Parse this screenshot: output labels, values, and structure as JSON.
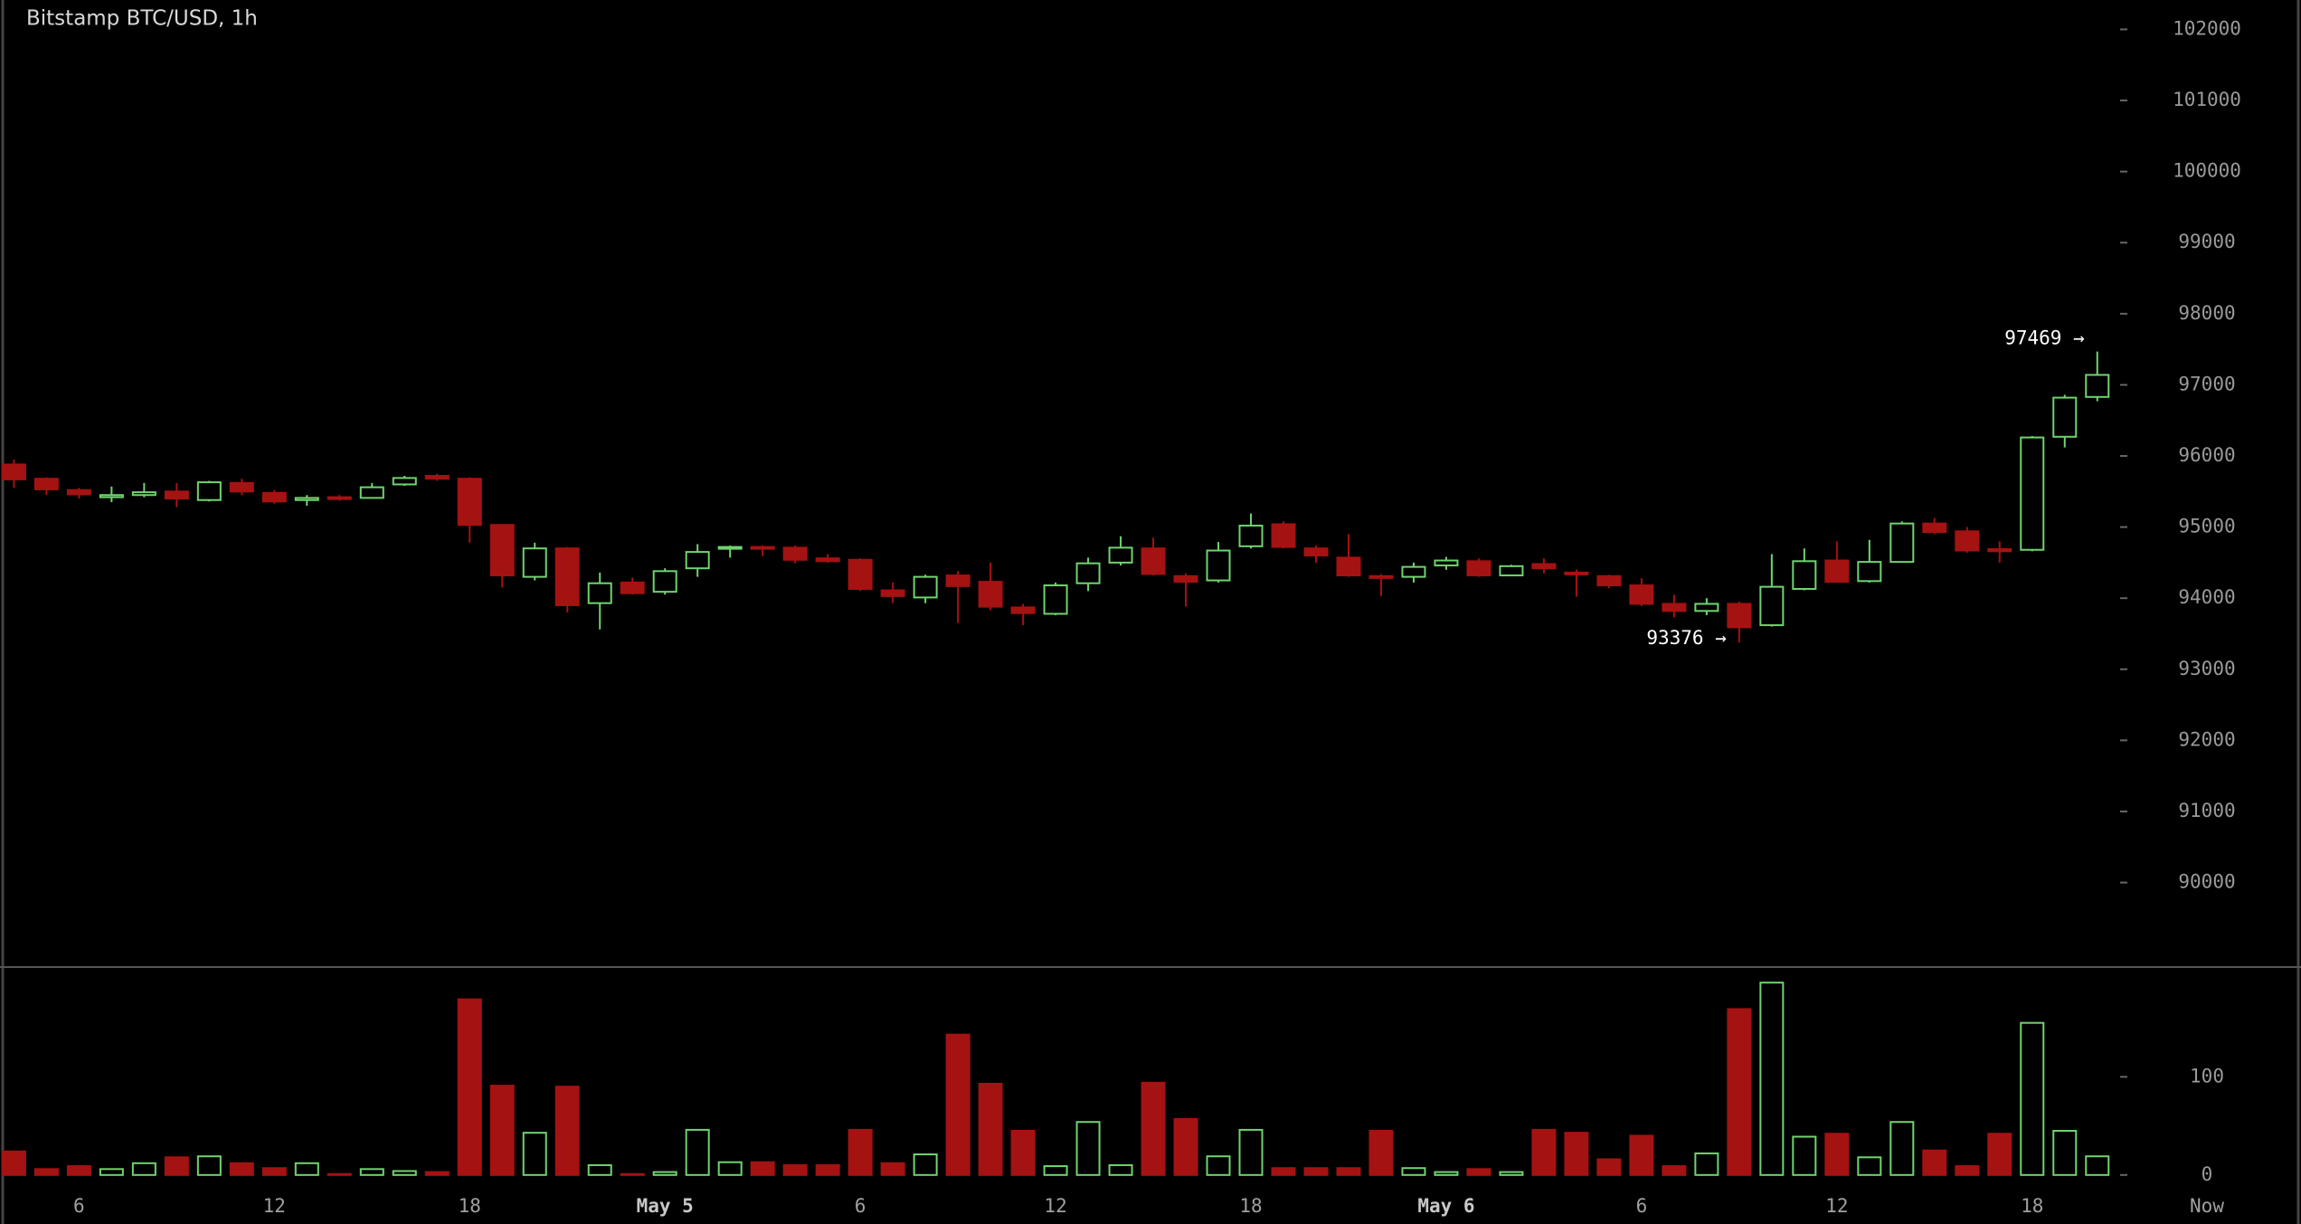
{
  "chart_data": {
    "type": "candlestick",
    "title": "Bitstamp BTC/USD, 1h",
    "categories": [
      null,
      null,
      "6",
      null,
      null,
      null,
      null,
      null,
      "12",
      null,
      null,
      null,
      null,
      null,
      "18",
      null,
      null,
      null,
      null,
      null,
      "May 5",
      null,
      null,
      null,
      null,
      null,
      "6",
      null,
      null,
      null,
      null,
      null,
      "12",
      null,
      null,
      null,
      null,
      null,
      "18",
      null,
      null,
      null,
      null,
      null,
      "May 6",
      null,
      null,
      null,
      null,
      null,
      "6",
      null,
      null,
      null,
      null,
      null,
      "12",
      null,
      null,
      null,
      null,
      null,
      "18",
      null,
      null
    ],
    "x_end_label": "Now",
    "open": [
      95880,
      95680,
      95520,
      95420,
      95450,
      95500,
      95380,
      95620,
      95480,
      95380,
      95420,
      95410,
      95600,
      95720,
      95680,
      95030,
      94300,
      94700,
      93930,
      94220,
      94090,
      94420,
      94700,
      94720,
      94710,
      94560,
      94540,
      94110,
      94010,
      94320,
      94230,
      93870,
      93780,
      94210,
      94500,
      94700,
      94310,
      94250,
      94730,
      95040,
      94700,
      94570,
      94310,
      94300,
      94460,
      94520,
      94320,
      94480,
      94360,
      94310,
      94180,
      93920,
      93820,
      93920,
      93620,
      94130,
      94530,
      94240,
      94510,
      95050,
      94940,
      94690,
      94680,
      96270,
      96830
    ],
    "high": [
      95950,
      95700,
      95550,
      95570,
      95620,
      95620,
      95650,
      95680,
      95520,
      95450,
      95450,
      95620,
      95720,
      95750,
      95700,
      95040,
      94780,
      94720,
      94360,
      94290,
      94420,
      94760,
      94740,
      94740,
      94740,
      94620,
      94560,
      94220,
      94330,
      94380,
      94500,
      93920,
      94220,
      94570,
      94870,
      94850,
      94350,
      94790,
      95190,
      95080,
      94740,
      94900,
      94340,
      94500,
      94580,
      94560,
      94470,
      94560,
      94400,
      94330,
      94280,
      94050,
      94000,
      93950,
      94620,
      94700,
      94800,
      94820,
      95080,
      95130,
      95000,
      94800,
      96280,
      96860,
      97469
    ],
    "low": [
      95550,
      95450,
      95400,
      95350,
      95420,
      95280,
      95360,
      95450,
      95330,
      95300,
      95370,
      95400,
      95580,
      95650,
      94780,
      94150,
      94250,
      93800,
      93560,
      94050,
      94050,
      94300,
      94570,
      94590,
      94490,
      94500,
      94100,
      93930,
      93930,
      93650,
      93830,
      93620,
      93760,
      94100,
      94460,
      94320,
      93880,
      94220,
      94700,
      94700,
      94500,
      94300,
      94030,
      94220,
      94400,
      94300,
      94320,
      94350,
      94020,
      94140,
      93890,
      93730,
      93760,
      93376,
      93600,
      94110,
      94220,
      94220,
      94500,
      94900,
      94640,
      94500,
      94660,
      96120,
      96770
    ],
    "close": [
      95670,
      95530,
      95460,
      95450,
      95490,
      95400,
      95630,
      95500,
      95360,
      95410,
      95400,
      95560,
      95690,
      95680,
      95030,
      94320,
      94700,
      93900,
      94210,
      94070,
      94380,
      94650,
      94720,
      94700,
      94540,
      94520,
      94130,
      94030,
      94300,
      94170,
      93880,
      93790,
      94180,
      94490,
      94710,
      94340,
      94230,
      94670,
      95020,
      94720,
      94600,
      94320,
      94290,
      94440,
      94530,
      94320,
      94450,
      94420,
      94340,
      94180,
      93920,
      93820,
      93920,
      93590,
      94160,
      94520,
      94230,
      94510,
      95050,
      94930,
      94670,
      94660,
      96260,
      96820,
      97140
    ],
    "volume": [
      24,
      6,
      9,
      6,
      12,
      18,
      19,
      12,
      7,
      12,
      1,
      6,
      4,
      3,
      179,
      91,
      43,
      90,
      10,
      1,
      3,
      46,
      13,
      13,
      10,
      10,
      46,
      12,
      21,
      143,
      93,
      45,
      9,
      54,
      10,
      94,
      57,
      19,
      46,
      7,
      7,
      7,
      45,
      7,
      3,
      6,
      3,
      46,
      43,
      16,
      40,
      9,
      22,
      169,
      196,
      39,
      42,
      18,
      54,
      25,
      9,
      42,
      155,
      45,
      19
    ],
    "up_color": "#6fd46f",
    "down_color": "#a51212",
    "ylim": [
      88824,
      102413
    ],
    "yticks": [
      90000,
      91000,
      92000,
      93000,
      94000,
      95000,
      96000,
      97000,
      98000,
      99000,
      100000,
      101000,
      102000
    ],
    "y2lim": [
      -14,
      210
    ],
    "y2ticks": [
      0,
      100
    ],
    "annotations": [
      {
        "value": 97469,
        "label": "97469 →"
      },
      {
        "value": 93376,
        "label": "93376 →"
      }
    ]
  }
}
